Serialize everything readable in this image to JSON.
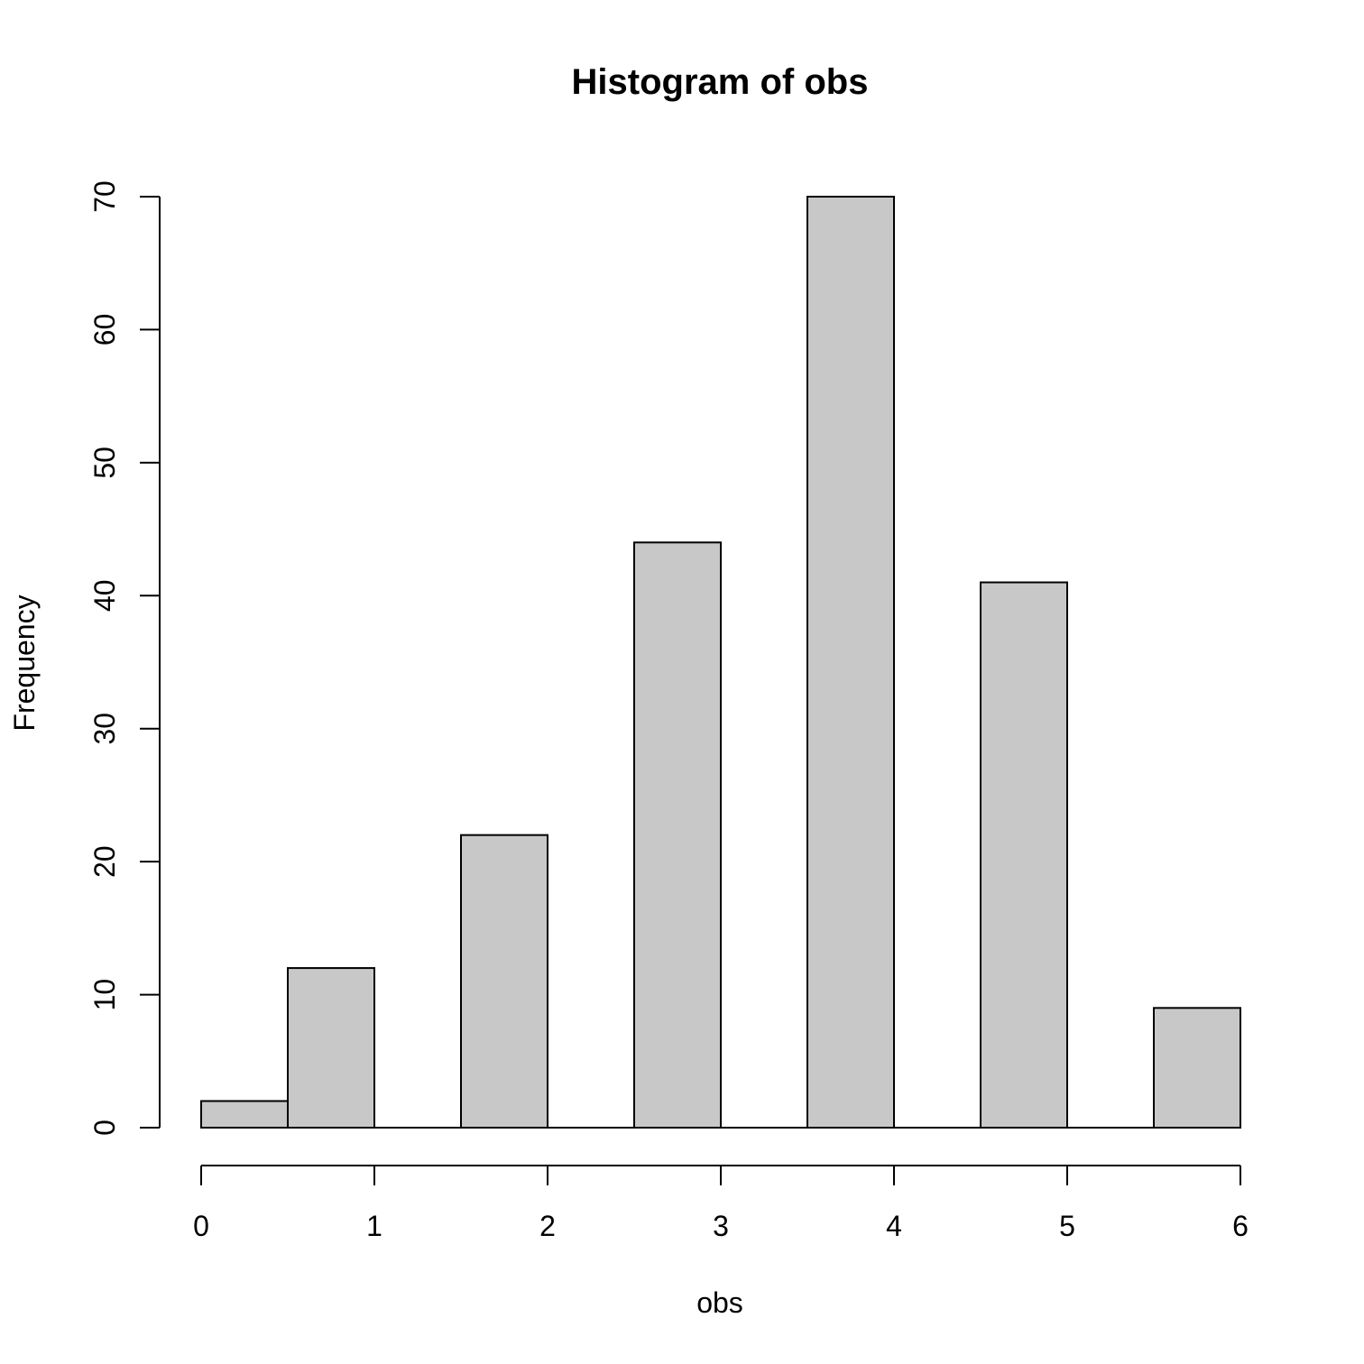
{
  "chart_data": {
    "type": "bar",
    "title": "Histogram of obs",
    "xlabel": "obs",
    "ylabel": "Frequency",
    "bins": [
      {
        "start": 0.0,
        "end": 0.5,
        "count": 2
      },
      {
        "start": 0.5,
        "end": 1.0,
        "count": 12
      },
      {
        "start": 1.0,
        "end": 1.5,
        "count": 0
      },
      {
        "start": 1.5,
        "end": 2.0,
        "count": 22
      },
      {
        "start": 2.0,
        "end": 2.5,
        "count": 0
      },
      {
        "start": 2.5,
        "end": 3.0,
        "count": 44
      },
      {
        "start": 3.0,
        "end": 3.5,
        "count": 0
      },
      {
        "start": 3.5,
        "end": 4.0,
        "count": 70
      },
      {
        "start": 4.0,
        "end": 4.5,
        "count": 0
      },
      {
        "start": 4.5,
        "end": 5.0,
        "count": 41
      },
      {
        "start": 5.0,
        "end": 5.5,
        "count": 0
      },
      {
        "start": 5.5,
        "end": 6.0,
        "count": 9
      }
    ],
    "xticks": [
      0,
      1,
      2,
      3,
      4,
      5,
      6
    ],
    "xtick_labels": [
      "0",
      "1",
      "2",
      "3",
      "4",
      "5",
      "6"
    ],
    "yticks": [
      0,
      10,
      20,
      30,
      40,
      50,
      60,
      70
    ],
    "ytick_labels": [
      "0",
      "10",
      "20",
      "30",
      "40",
      "50",
      "60",
      "70"
    ],
    "xlim": [
      0,
      6
    ],
    "ylim": [
      0,
      70
    ],
    "grid": false,
    "legend": "none",
    "colors": {
      "bar_fill": "#c8c8c8",
      "bar_stroke": "#000000",
      "axis": "#000000",
      "background": "#ffffff"
    }
  }
}
